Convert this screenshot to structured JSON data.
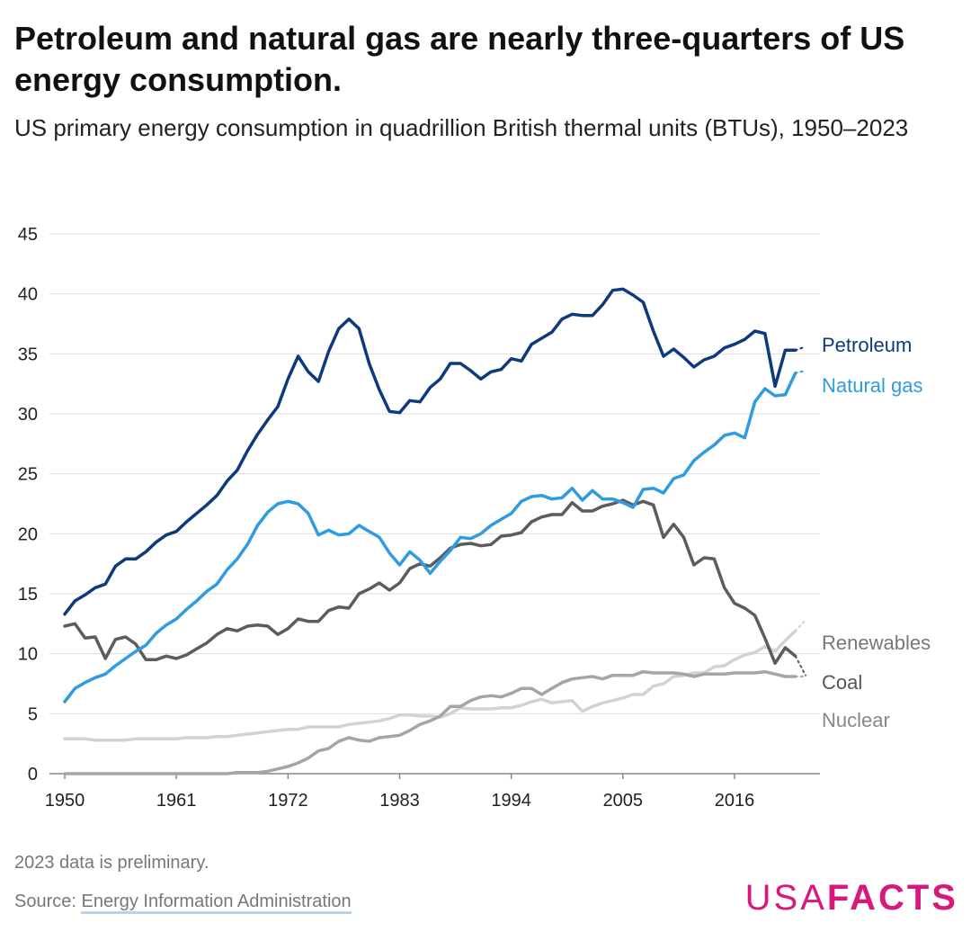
{
  "title": "Petroleum and natural gas are nearly three-quarters of US energy consumption.",
  "subtitle": "US primary energy consumption in quadrillion British thermal units (BTUs), 1950–2023",
  "note": "2023 data is preliminary.",
  "source_prefix": "Source: ",
  "source_link": "Energy Information Administration",
  "logo": {
    "light": "USA",
    "bold": "FACTS",
    "color": "#d7197c"
  },
  "chart_data": {
    "type": "line",
    "xlim": [
      1950,
      2023
    ],
    "ylim": [
      0,
      45
    ],
    "x_ticks": [
      1950,
      1961,
      1972,
      1983,
      1994,
      2005,
      2016
    ],
    "y_ticks": [
      0,
      5,
      10,
      15,
      20,
      25,
      30,
      35,
      40,
      45
    ],
    "grid": true,
    "legend": "direct labels at right end of lines",
    "start_year": 1950,
    "series": [
      {
        "name": "Petroleum",
        "color": "#0d3a7c",
        "values": [
          13.3,
          14.4,
          14.9,
          15.5,
          15.8,
          17.3,
          17.9,
          17.9,
          18.5,
          19.3,
          19.9,
          20.2,
          21.0,
          21.7,
          22.4,
          23.2,
          24.4,
          25.3,
          26.9,
          28.3,
          29.5,
          30.6,
          32.9,
          34.8,
          33.5,
          32.7,
          35.2,
          37.1,
          37.9,
          37.1,
          34.2,
          32.0,
          30.2,
          30.1,
          31.1,
          31.0,
          32.2,
          32.9,
          34.2,
          34.2,
          33.6,
          32.9,
          33.5,
          33.7,
          34.6,
          34.4,
          35.8,
          36.3,
          36.8,
          37.9,
          38.3,
          38.2,
          38.2,
          39.1,
          40.3,
          40.4,
          39.9,
          39.3,
          36.9,
          34.8,
          35.4,
          34.7,
          33.9,
          34.5,
          34.8,
          35.5,
          35.8,
          36.2,
          36.9,
          36.7,
          32.3,
          35.3,
          35.3,
          35.6
        ]
      },
      {
        "name": "Natural gas",
        "color": "#2f9be0",
        "values": [
          6.0,
          7.1,
          7.6,
          8.0,
          8.3,
          9.0,
          9.6,
          10.2,
          10.7,
          11.7,
          12.4,
          12.9,
          13.7,
          14.4,
          15.2,
          15.8,
          17.0,
          17.9,
          19.1,
          20.7,
          21.8,
          22.5,
          22.7,
          22.5,
          21.7,
          19.9,
          20.3,
          19.9,
          20.0,
          20.7,
          20.2,
          19.7,
          18.4,
          17.4,
          18.5,
          17.8,
          16.7,
          17.7,
          18.6,
          19.7,
          19.6,
          20.0,
          20.7,
          21.2,
          21.7,
          22.7,
          23.1,
          23.2,
          22.9,
          23.0,
          23.8,
          22.8,
          23.6,
          22.9,
          22.9,
          22.6,
          22.2,
          23.7,
          23.8,
          23.4,
          24.6,
          24.9,
          26.1,
          26.8,
          27.4,
          28.2,
          28.4,
          28.0,
          31.0,
          32.1,
          31.5,
          31.6,
          33.4,
          33.6
        ]
      },
      {
        "name": "Coal",
        "color": "#5c5c5c",
        "values": [
          12.3,
          12.5,
          11.3,
          11.4,
          9.6,
          11.2,
          11.4,
          10.8,
          9.5,
          9.5,
          9.8,
          9.6,
          9.9,
          10.4,
          10.9,
          11.6,
          12.1,
          11.9,
          12.3,
          12.4,
          12.3,
          11.6,
          12.1,
          12.9,
          12.7,
          12.7,
          13.6,
          13.9,
          13.8,
          15.0,
          15.4,
          15.9,
          15.3,
          15.9,
          17.1,
          17.5,
          17.3,
          18.0,
          18.8,
          19.1,
          19.2,
          19.0,
          19.1,
          19.8,
          19.9,
          20.1,
          21.0,
          21.4,
          21.6,
          21.6,
          22.6,
          21.9,
          21.9,
          22.3,
          22.5,
          22.8,
          22.4,
          22.7,
          22.4,
          19.7,
          20.8,
          19.7,
          17.4,
          18.0,
          17.9,
          15.5,
          14.2,
          13.8,
          13.2,
          11.3,
          9.2,
          10.5,
          9.8,
          8.2
        ]
      },
      {
        "name": "Renewables",
        "color": "#d2d2d2",
        "values": [
          2.9,
          2.9,
          2.9,
          2.8,
          2.8,
          2.8,
          2.8,
          2.9,
          2.9,
          2.9,
          2.9,
          2.9,
          3.0,
          3.0,
          3.0,
          3.1,
          3.1,
          3.2,
          3.3,
          3.4,
          3.5,
          3.6,
          3.7,
          3.7,
          3.9,
          3.9,
          3.9,
          3.9,
          4.1,
          4.2,
          4.3,
          4.4,
          4.6,
          4.9,
          4.9,
          4.8,
          4.8,
          4.7,
          5.0,
          5.5,
          5.4,
          5.4,
          5.4,
          5.5,
          5.5,
          5.7,
          6.0,
          6.2,
          5.9,
          6.0,
          6.1,
          5.2,
          5.6,
          5.9,
          6.1,
          6.3,
          6.6,
          6.6,
          7.3,
          7.5,
          8.1,
          8.2,
          8.4,
          8.4,
          8.9,
          9.0,
          9.5,
          9.9,
          10.1,
          10.6,
          10.2,
          11.1,
          11.9,
          12.8
        ]
      },
      {
        "name": "Nuclear",
        "color": "#a5a5a5",
        "values": [
          0,
          0,
          0,
          0,
          0,
          0,
          0,
          0,
          0,
          0,
          0,
          0,
          0,
          0,
          0,
          0,
          0,
          0.1,
          0.1,
          0.1,
          0.2,
          0.4,
          0.6,
          0.9,
          1.3,
          1.9,
          2.1,
          2.7,
          3.0,
          2.8,
          2.7,
          3.0,
          3.1,
          3.2,
          3.6,
          4.1,
          4.4,
          4.8,
          5.6,
          5.6,
          6.1,
          6.4,
          6.5,
          6.4,
          6.7,
          7.1,
          7.1,
          6.6,
          7.1,
          7.6,
          7.9,
          8.0,
          8.1,
          7.9,
          8.2,
          8.2,
          8.2,
          8.5,
          8.4,
          8.4,
          8.4,
          8.3,
          8.1,
          8.3,
          8.3,
          8.3,
          8.4,
          8.4,
          8.4,
          8.5,
          8.3,
          8.1,
          8.1,
          8.1
        ]
      }
    ]
  }
}
